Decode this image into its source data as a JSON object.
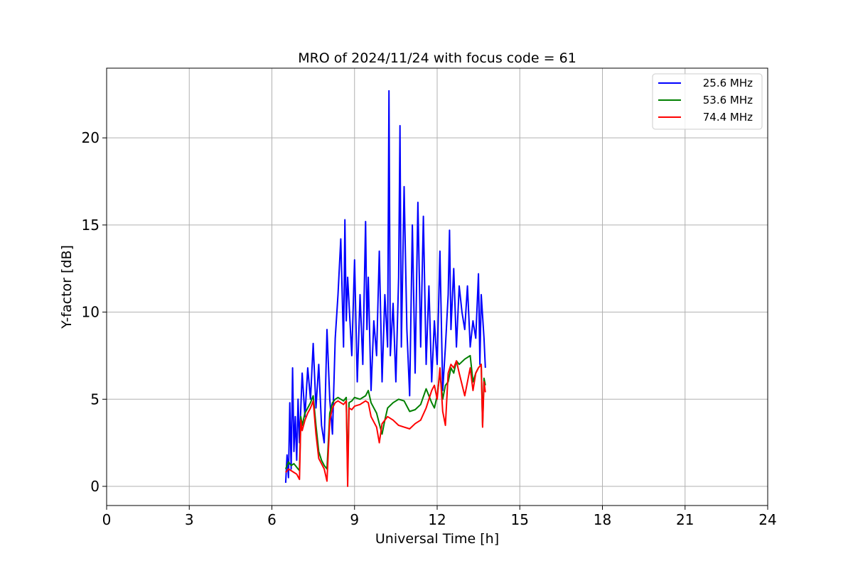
{
  "chart_data": {
    "type": "line",
    "title": "MRO of 2024/11/24 with focus code = 61",
    "xlabel": "Universal Time [h]",
    "ylabel": "Y-factor [dB]",
    "xlim": [
      0,
      24
    ],
    "ylim": [
      -1.1,
      24
    ],
    "xticks": [
      0,
      3,
      6,
      9,
      12,
      15,
      18,
      21,
      24
    ],
    "yticks": [
      0,
      5,
      10,
      15,
      20
    ],
    "grid": true,
    "legend_position": "top-right",
    "series": [
      {
        "name": "25.6 MHz",
        "color": "#0000ff",
        "x": [
          6.5,
          6.55,
          6.6,
          6.65,
          6.7,
          6.75,
          6.8,
          6.85,
          6.9,
          6.95,
          7.0,
          7.1,
          7.2,
          7.3,
          7.4,
          7.5,
          7.6,
          7.7,
          7.8,
          7.9,
          8.0,
          8.1,
          8.2,
          8.3,
          8.4,
          8.5,
          8.6,
          8.65,
          8.7,
          8.75,
          8.8,
          8.9,
          9.0,
          9.1,
          9.2,
          9.3,
          9.4,
          9.45,
          9.5,
          9.6,
          9.7,
          9.8,
          9.9,
          10.0,
          10.1,
          10.2,
          10.25,
          10.3,
          10.4,
          10.5,
          10.6,
          10.65,
          10.7,
          10.8,
          10.9,
          11.0,
          11.1,
          11.2,
          11.3,
          11.4,
          11.5,
          11.6,
          11.7,
          11.8,
          11.9,
          12.0,
          12.1,
          12.2,
          12.3,
          12.4,
          12.45,
          12.5,
          12.6,
          12.7,
          12.8,
          12.9,
          13.0,
          13.1,
          13.2,
          13.3,
          13.4,
          13.5,
          13.55,
          13.6,
          13.7,
          13.75
        ],
        "y": [
          0.2,
          1.8,
          0.5,
          4.8,
          1.0,
          6.8,
          2.0,
          4.0,
          1.5,
          5.0,
          2.5,
          6.5,
          4.0,
          6.8,
          5.0,
          8.2,
          4.5,
          7.0,
          3.5,
          2.5,
          9.0,
          5.0,
          3.0,
          8.5,
          11.0,
          14.2,
          8.0,
          15.3,
          9.5,
          12.0,
          10.5,
          7.5,
          13.0,
          6.0,
          11.0,
          7.0,
          15.2,
          9.0,
          12.0,
          5.5,
          9.5,
          7.5,
          13.5,
          6.0,
          11.0,
          8.0,
          22.7,
          7.5,
          10.5,
          6.0,
          12.0,
          20.7,
          8.0,
          17.2,
          9.0,
          5.2,
          15.0,
          6.5,
          16.3,
          8.0,
          15.5,
          7.0,
          11.5,
          6.0,
          9.5,
          7.0,
          13.5,
          5.5,
          8.0,
          11.0,
          14.7,
          9.0,
          12.5,
          8.0,
          11.5,
          10.0,
          9.0,
          11.5,
          8.0,
          9.5,
          8.5,
          12.2,
          7.0,
          11.0,
          8.5,
          6.8
        ]
      },
      {
        "name": "53.6 MHz",
        "color": "#008000",
        "x": [
          6.5,
          6.6,
          6.7,
          6.8,
          6.9,
          7.0,
          7.05,
          7.1,
          7.2,
          7.3,
          7.4,
          7.5,
          7.6,
          7.7,
          7.8,
          7.9,
          8.0,
          8.1,
          8.2,
          8.3,
          8.4,
          8.5,
          8.6,
          8.7,
          8.75,
          8.8,
          8.9,
          9.0,
          9.2,
          9.4,
          9.5,
          9.6,
          9.8,
          9.9,
          10.0,
          10.1,
          10.2,
          10.4,
          10.6,
          10.8,
          11.0,
          11.2,
          11.4,
          11.6,
          11.8,
          11.9,
          12.0,
          12.1,
          12.2,
          12.3,
          12.4,
          12.5,
          12.6,
          12.7,
          12.8,
          13.0,
          13.2,
          13.3,
          13.4,
          13.5,
          13.6,
          13.65,
          13.7,
          13.75
        ],
        "y": [
          1.0,
          1.4,
          1.2,
          1.3,
          1.1,
          0.9,
          4.0,
          3.5,
          4.2,
          4.5,
          4.8,
          5.2,
          3.5,
          2.0,
          1.5,
          1.2,
          1.0,
          4.2,
          4.8,
          5.0,
          5.1,
          5.0,
          4.9,
          5.1,
          0.6,
          4.8,
          4.9,
          5.1,
          5.0,
          5.2,
          5.5,
          4.8,
          4.2,
          3.6,
          3.0,
          3.8,
          4.5,
          4.8,
          5.0,
          4.9,
          4.3,
          4.4,
          4.7,
          5.6,
          4.8,
          4.5,
          5.2,
          6.5,
          5.0,
          5.8,
          6.0,
          6.8,
          6.5,
          7.2,
          7.0,
          7.3,
          7.5,
          6.0,
          6.5,
          6.8,
          7.0,
          3.5,
          6.2,
          5.8
        ]
      },
      {
        "name": "74.4 MHz",
        "color": "#ff0000",
        "x": [
          6.5,
          6.6,
          6.7,
          6.8,
          6.9,
          7.0,
          7.05,
          7.1,
          7.2,
          7.3,
          7.4,
          7.5,
          7.6,
          7.7,
          7.8,
          7.9,
          8.0,
          8.1,
          8.2,
          8.3,
          8.4,
          8.5,
          8.6,
          8.7,
          8.75,
          8.8,
          8.9,
          9.0,
          9.2,
          9.4,
          9.5,
          9.6,
          9.8,
          9.9,
          10.0,
          10.2,
          10.4,
          10.6,
          10.8,
          11.0,
          11.2,
          11.4,
          11.6,
          11.8,
          11.9,
          12.0,
          12.1,
          12.2,
          12.3,
          12.4,
          12.5,
          12.6,
          12.7,
          12.8,
          13.0,
          13.2,
          13.3,
          13.4,
          13.5,
          13.6,
          13.65,
          13.7,
          13.75
        ],
        "y": [
          0.8,
          1.0,
          0.9,
          0.8,
          0.7,
          0.4,
          3.8,
          3.2,
          3.8,
          4.2,
          4.5,
          4.9,
          3.0,
          1.6,
          1.3,
          1.0,
          0.3,
          3.8,
          4.5,
          4.8,
          4.9,
          4.8,
          4.7,
          4.9,
          0.0,
          4.5,
          4.4,
          4.6,
          4.7,
          4.9,
          4.8,
          4.0,
          3.4,
          2.5,
          3.6,
          4.0,
          3.8,
          3.5,
          3.4,
          3.3,
          3.6,
          3.8,
          4.5,
          5.5,
          5.8,
          5.0,
          6.8,
          4.3,
          3.5,
          6.5,
          7.0,
          6.8,
          7.2,
          6.5,
          5.2,
          6.8,
          5.5,
          6.5,
          6.8,
          7.0,
          3.4,
          6.0,
          5.4
        ]
      }
    ]
  }
}
